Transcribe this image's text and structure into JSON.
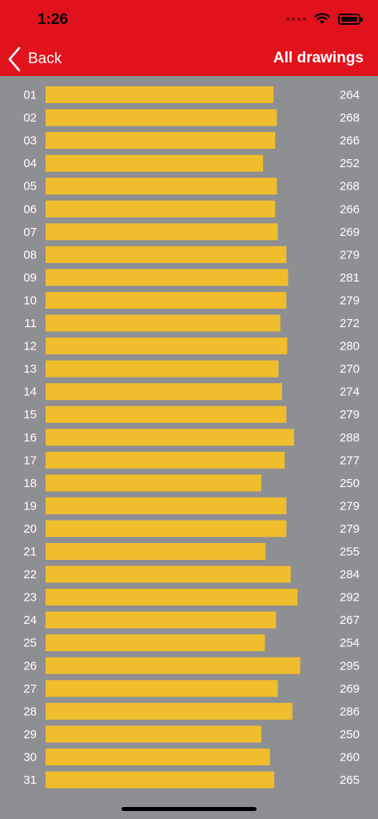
{
  "status_bar": {
    "time": "1:26"
  },
  "nav": {
    "back_label": "Back",
    "title": "All drawings"
  },
  "colors": {
    "nav_background": "#e0121c",
    "page_background": "#8e8f93",
    "bar": "#f0be2c",
    "label_text": "#ffffff"
  },
  "icons": {
    "back": "chevron-left-icon",
    "wifi": "wifi-icon",
    "battery": "battery-icon",
    "signal": "cellular-signal-icon"
  },
  "chart_data": {
    "type": "bar",
    "orientation": "horizontal",
    "categories": [
      "01",
      "02",
      "03",
      "04",
      "05",
      "06",
      "07",
      "08",
      "09",
      "10",
      "11",
      "12",
      "13",
      "14",
      "15",
      "16",
      "17",
      "18",
      "19",
      "20",
      "21",
      "22",
      "23",
      "24",
      "25",
      "26",
      "27",
      "28",
      "29",
      "30",
      "31"
    ],
    "values": [
      264,
      268,
      266,
      252,
      268,
      266,
      269,
      279,
      281,
      279,
      272,
      280,
      270,
      274,
      279,
      288,
      277,
      250,
      279,
      279,
      255,
      284,
      292,
      267,
      254,
      295,
      269,
      286,
      250,
      260,
      265
    ],
    "title": "",
    "xlabel": "",
    "ylabel": "",
    "data_labels": true,
    "grid": false,
    "legend": "none"
  }
}
